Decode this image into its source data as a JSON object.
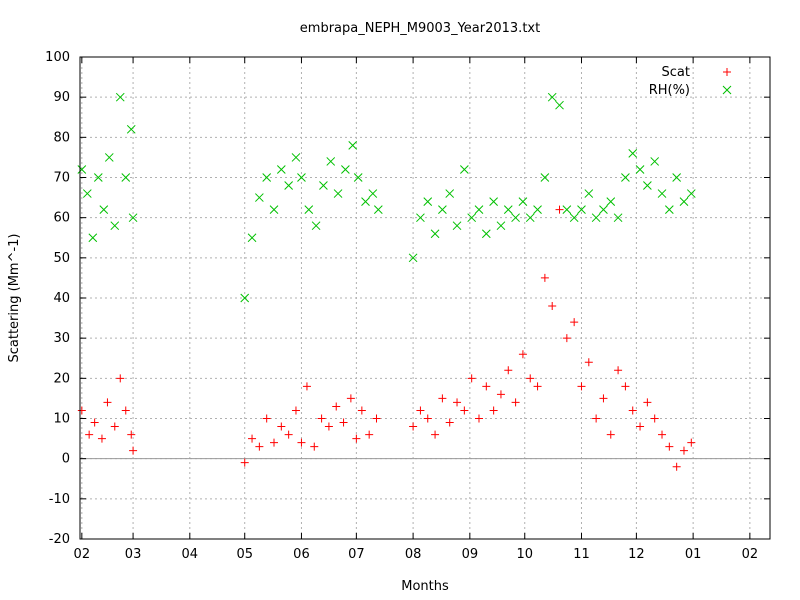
{
  "chart_data": {
    "type": "scatter",
    "title": "embrapa_NEPH_M9003_Year2013.txt",
    "xlabel": "Months",
    "ylabel": "Scattering (Mm^-1)",
    "ylim": [
      -20,
      100
    ],
    "yticks": [
      -20,
      -10,
      0,
      10,
      20,
      30,
      40,
      50,
      60,
      70,
      80,
      90,
      100
    ],
    "xlim": [
      "2013-01-31",
      "2014-02-12"
    ],
    "xticks": [
      {
        "date": "2013-02-01",
        "label": "02"
      },
      {
        "date": "2013-03-01",
        "label": "03"
      },
      {
        "date": "2013-04-01",
        "label": "04"
      },
      {
        "date": "2013-05-01",
        "label": "05"
      },
      {
        "date": "2013-06-01",
        "label": "06"
      },
      {
        "date": "2013-07-01",
        "label": "07"
      },
      {
        "date": "2013-08-01",
        "label": "08"
      },
      {
        "date": "2013-09-01",
        "label": "09"
      },
      {
        "date": "2013-10-01",
        "label": "10"
      },
      {
        "date": "2013-11-01",
        "label": "11"
      },
      {
        "date": "2013-12-01",
        "label": "12"
      },
      {
        "date": "2014-01-01",
        "label": "01"
      },
      {
        "date": "2014-02-01",
        "label": "02"
      }
    ],
    "zero_line": 0,
    "grid": true,
    "legend_position": "top-right",
    "series": [
      {
        "name": "Scat",
        "marker": "+",
        "color": "#ff0000",
        "x": [
          "2013-02-01",
          "2013-02-05",
          "2013-02-08",
          "2013-02-12",
          "2013-02-15",
          "2013-02-19",
          "2013-02-22",
          "2013-02-25",
          "2013-02-28",
          "2013-03-01",
          "2013-05-01",
          "2013-05-05",
          "2013-05-09",
          "2013-05-13",
          "2013-05-17",
          "2013-05-21",
          "2013-05-25",
          "2013-05-29",
          "2013-06-01",
          "2013-06-04",
          "2013-06-08",
          "2013-06-12",
          "2013-06-16",
          "2013-06-20",
          "2013-06-24",
          "2013-06-28",
          "2013-07-01",
          "2013-07-04",
          "2013-07-08",
          "2013-07-12",
          "2013-08-01",
          "2013-08-05",
          "2013-08-09",
          "2013-08-13",
          "2013-08-17",
          "2013-08-21",
          "2013-08-25",
          "2013-08-29",
          "2013-09-02",
          "2013-09-06",
          "2013-09-10",
          "2013-09-14",
          "2013-09-18",
          "2013-09-22",
          "2013-09-26",
          "2013-09-30",
          "2013-10-04",
          "2013-10-08",
          "2013-10-12",
          "2013-10-16",
          "2013-10-20",
          "2013-10-24",
          "2013-10-28",
          "2013-11-01",
          "2013-11-05",
          "2013-11-09",
          "2013-11-13",
          "2013-11-17",
          "2013-11-21",
          "2013-11-25",
          "2013-11-29",
          "2013-12-03",
          "2013-12-07",
          "2013-12-11",
          "2013-12-15",
          "2013-12-19",
          "2013-12-23",
          "2013-12-27",
          "2013-12-31"
        ],
        "y": [
          12,
          6,
          9,
          5,
          14,
          8,
          20,
          12,
          6,
          2,
          -1,
          5,
          3,
          10,
          4,
          8,
          6,
          12,
          4,
          18,
          3,
          10,
          8,
          13,
          9,
          15,
          5,
          12,
          6,
          10,
          8,
          12,
          10,
          6,
          15,
          9,
          14,
          12,
          20,
          10,
          18,
          12,
          16,
          22,
          14,
          26,
          20,
          18,
          45,
          38,
          62,
          30,
          34,
          18,
          24,
          10,
          15,
          6,
          22,
          18,
          12,
          8,
          14,
          10,
          6,
          3,
          -2,
          2,
          4
        ]
      },
      {
        "name": "RH(%)",
        "marker": "x",
        "color": "#00c000",
        "x": [
          "2013-02-01",
          "2013-02-04",
          "2013-02-07",
          "2013-02-10",
          "2013-02-13",
          "2013-02-16",
          "2013-02-19",
          "2013-02-22",
          "2013-02-25",
          "2013-02-28",
          "2013-03-01",
          "2013-05-01",
          "2013-05-05",
          "2013-05-09",
          "2013-05-13",
          "2013-05-17",
          "2013-05-21",
          "2013-05-25",
          "2013-05-29",
          "2013-06-01",
          "2013-06-05",
          "2013-06-09",
          "2013-06-13",
          "2013-06-17",
          "2013-06-21",
          "2013-06-25",
          "2013-06-29",
          "2013-07-02",
          "2013-07-06",
          "2013-07-10",
          "2013-07-13",
          "2013-08-01",
          "2013-08-05",
          "2013-08-09",
          "2013-08-13",
          "2013-08-17",
          "2013-08-21",
          "2013-08-25",
          "2013-08-29",
          "2013-09-02",
          "2013-09-06",
          "2013-09-10",
          "2013-09-14",
          "2013-09-18",
          "2013-09-22",
          "2013-09-26",
          "2013-09-30",
          "2013-10-04",
          "2013-10-08",
          "2013-10-12",
          "2013-10-16",
          "2013-10-20",
          "2013-10-24",
          "2013-10-28",
          "2013-11-01",
          "2013-11-05",
          "2013-11-09",
          "2013-11-13",
          "2013-11-17",
          "2013-11-21",
          "2013-11-25",
          "2013-11-29",
          "2013-12-03",
          "2013-12-07",
          "2013-12-11",
          "2013-12-15",
          "2013-12-19",
          "2013-12-23",
          "2013-12-27",
          "2013-12-31"
        ],
        "y": [
          72,
          66,
          55,
          70,
          62,
          75,
          58,
          90,
          70,
          82,
          60,
          40,
          55,
          65,
          70,
          62,
          72,
          68,
          75,
          70,
          62,
          58,
          68,
          74,
          66,
          72,
          78,
          70,
          64,
          66,
          62,
          50,
          60,
          64,
          56,
          62,
          66,
          58,
          72,
          60,
          62,
          56,
          64,
          58,
          62,
          60,
          64,
          60,
          62,
          70,
          90,
          88,
          62,
          60,
          62,
          66,
          60,
          62,
          64,
          60,
          70,
          76,
          72,
          68,
          74,
          66,
          62,
          70,
          64,
          66
        ]
      }
    ]
  }
}
